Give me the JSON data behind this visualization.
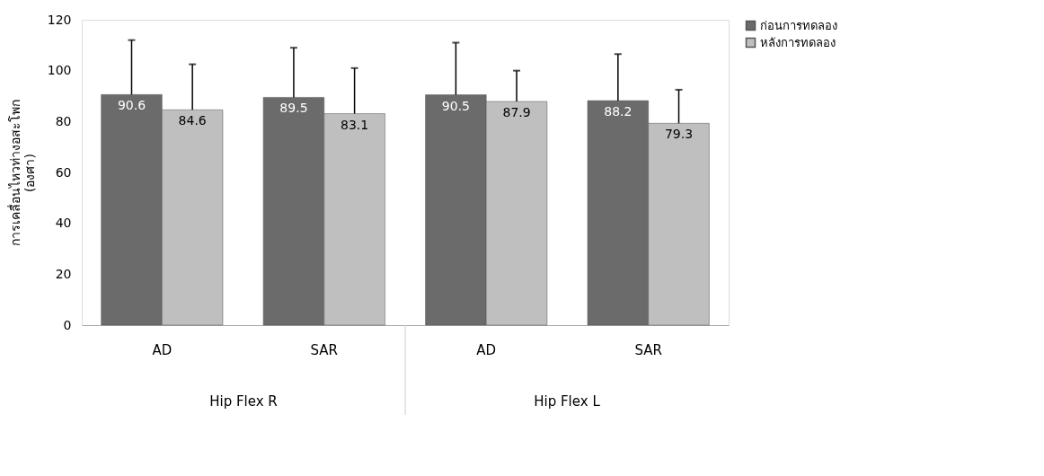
{
  "chart_data": {
    "type": "bar",
    "ylabel": "การเคลื่อนไหวท่างอสะโพก\n(องศา)",
    "categories": [
      "AD",
      "SAR",
      "AD",
      "SAR"
    ],
    "series": [
      {
        "name": "ก่อนการทดลอง",
        "color": "#6b6b6b",
        "values": [
          90.6,
          89.5,
          90.5,
          88.2
        ],
        "errors": [
          [
            90.6,
            112
          ],
          [
            89.5,
            109
          ],
          [
            90.5,
            111
          ],
          [
            88.2,
            106.5
          ]
        ]
      },
      {
        "name": "หลังการทดลอง",
        "color": "#bfbfbf",
        "values": [
          84.6,
          83.1,
          87.9,
          79.3
        ],
        "errors": [
          [
            84.6,
            102.5
          ],
          [
            83.1,
            101
          ],
          [
            87.9,
            100
          ],
          [
            79.3,
            92.5
          ]
        ]
      }
    ],
    "annotations": [
      "Hip Flex R",
      "Hip Flex L"
    ],
    "ylim": [
      0,
      120
    ],
    "yticks": [
      0,
      20,
      40,
      60,
      80,
      100,
      120
    ],
    "data_labels": true,
    "grid": false,
    "legend": "right"
  }
}
